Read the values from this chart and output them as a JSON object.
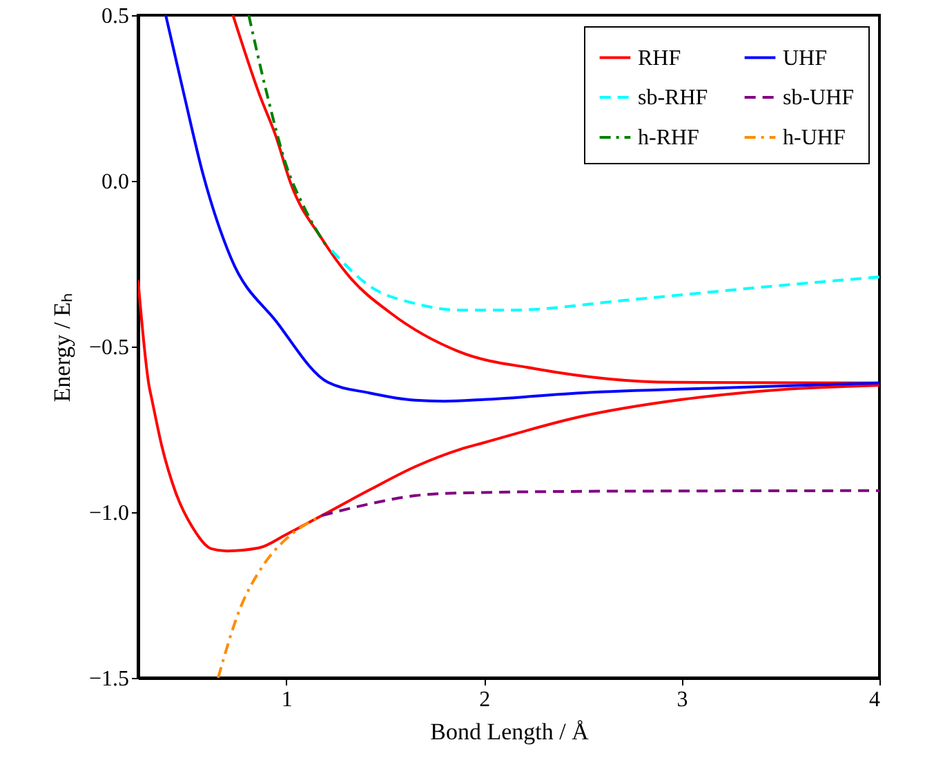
{
  "chart_data": {
    "type": "line",
    "xlabel": "Bond Length / Å",
    "ylabel": "Energy / Eₕ",
    "xlim": [
      0.25,
      4
    ],
    "xticks": [
      1,
      2,
      3,
      4
    ],
    "ylim": [
      -1.5,
      0.5
    ],
    "yticks": [
      {
        "value": -1.5,
        "label": "−1.5"
      },
      {
        "value": -1.0,
        "label": "−1.0"
      },
      {
        "value": -0.5,
        "label": "−0.5"
      },
      {
        "value": 0.0,
        "label": "0.0"
      },
      {
        "value": 0.5,
        "label": "0.5"
      }
    ],
    "grid": false,
    "legend": "top right",
    "marker": "none",
    "series": [
      {
        "name": "RHF",
        "color": "#ff0000",
        "line_style": "solid",
        "x": [
          0.25,
          0.306,
          0.32,
          0.37,
          0.44,
          0.53,
          0.62,
          0.7,
          0.86,
          1.0,
          1.18,
          1.42,
          1.65,
          1.88,
          2.0,
          2.5,
          3.0,
          3.5,
          4.0
        ],
        "values": [
          -0.3,
          -0.62,
          -0.66,
          -0.8,
          -0.94,
          -1.05,
          -1.11,
          -1.117,
          -1.108,
          -1.067,
          -1.01,
          -0.933,
          -0.863,
          -0.81,
          -0.79,
          -0.71,
          -0.66,
          -0.63,
          -0.617
        ]
      },
      {
        "name": "sb-RHF",
        "color": "#00ffff",
        "line_style": "dashed",
        "x": [
          1.23,
          1.42,
          1.65,
          1.88,
          2.14,
          2.72,
          3.42,
          4.0
        ],
        "values": [
          -0.21,
          -0.317,
          -0.37,
          -0.39,
          -0.39,
          -0.36,
          -0.32,
          -0.29
        ]
      },
      {
        "name": "h-RHF",
        "color": "#008000",
        "line_style": "dashdot",
        "x": [
          0.81,
          0.9,
          1.0,
          1.09,
          1.21
        ],
        "values": [
          0.5,
          0.267,
          0.046,
          -0.08,
          -0.204
        ]
      },
      {
        "name": "UHF",
        "color": "#0000ff",
        "line_style": "solid",
        "x": [
          0.39,
          0.48,
          0.58,
          0.72,
          0.95,
          1.21,
          1.42,
          1.65,
          1.8,
          2.0,
          2.49,
          3.19,
          4.0
        ],
        "values": [
          0.5,
          0.267,
          0.017,
          -0.233,
          -0.425,
          -0.608,
          -0.64,
          -0.662,
          -0.665,
          -0.66,
          -0.64,
          -0.625,
          -0.61
        ]
      },
      {
        "name": "sb-UHF",
        "color": "#800080",
        "line_style": "dashed",
        "x": [
          1.18,
          1.42,
          1.65,
          1.88,
          2.5,
          3.0,
          4.0
        ],
        "values": [
          -1.01,
          -0.975,
          -0.95,
          -0.942,
          -0.937,
          -0.936,
          -0.935
        ]
      },
      {
        "name": "h-UHF",
        "color": "#ff8c00",
        "line_style": "dashdot",
        "x": [
          0.655,
          0.76,
          0.88,
          1.0,
          1.16
        ],
        "values": [
          -1.5,
          -1.3,
          -1.163,
          -1.08,
          -1.017
        ]
      },
      {
        "color": "#ff0000",
        "line_style": "solid",
        "x": [
          0.73,
          0.86,
          0.95,
          1.02,
          1.18,
          1.32,
          1.53,
          1.88,
          2.26,
          2.96,
          4.0
        ],
        "values": [
          0.5,
          0.267,
          0.13,
          -0.004,
          -0.175,
          -0.29,
          -0.4,
          -0.517,
          -0.567,
          -0.608,
          -0.61
        ]
      }
    ]
  }
}
